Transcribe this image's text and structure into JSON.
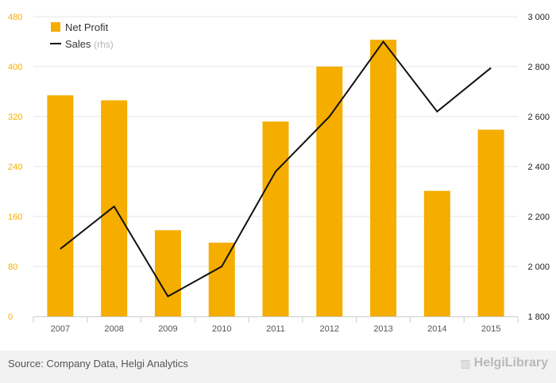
{
  "chart_data": {
    "type": "bar",
    "categories": [
      "2007",
      "2008",
      "2009",
      "2010",
      "2011",
      "2012",
      "2013",
      "2014",
      "2015"
    ],
    "series": [
      {
        "name": "Net Profit",
        "kind": "bar",
        "axis": "left",
        "color": "#f5ad00",
        "values": [
          354,
          346,
          138,
          118,
          312,
          400,
          443,
          201,
          299
        ]
      },
      {
        "name": "Sales",
        "kind": "line",
        "axis": "right",
        "color": "#111111",
        "values": [
          2070,
          2240,
          1880,
          2000,
          2380,
          2600,
          2900,
          2620,
          2795
        ]
      }
    ],
    "legend": [
      {
        "label": "Net Profit",
        "suffix": ""
      },
      {
        "label": "Sales",
        "suffix": "(rhs)"
      }
    ],
    "ylim": [
      0,
      480
    ],
    "ylim_right": [
      1800,
      3000
    ],
    "yticks_left": [
      "0",
      "80",
      "160",
      "240",
      "320",
      "400",
      "480"
    ],
    "yticks_right": [
      "1 800",
      "2 000",
      "2 200",
      "2 400",
      "2 600",
      "2 800",
      "3 000"
    ],
    "grid": true,
    "legend_position": "top-left"
  },
  "footer": {
    "source": "Source: Company Data, Helgi Analytics",
    "brand": "HelgiLibrary"
  },
  "colors": {
    "left_axis": "#f5ad00",
    "right_axis": "#222222",
    "grid": "#e6e6e6"
  }
}
